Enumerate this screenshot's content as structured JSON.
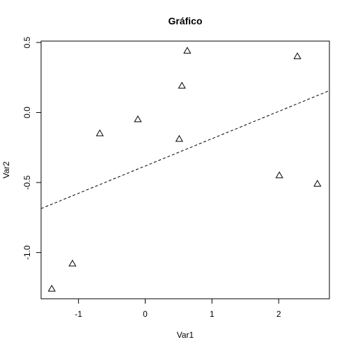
{
  "chart_data": {
    "type": "scatter",
    "title": "Gráfico",
    "xlabel": "Var1",
    "ylabel": "Var2",
    "xlim": [
      -1.56,
      2.76
    ],
    "ylim": [
      -1.33,
      0.51
    ],
    "x_ticks": [
      -1,
      0,
      1,
      2
    ],
    "x_tick_labels": [
      "-1",
      "0",
      "1",
      "2"
    ],
    "y_ticks": [
      -1.0,
      -0.5,
      0.0,
      0.5
    ],
    "y_tick_labels": [
      "-1.0",
      "-0.5",
      "0.0",
      "0.5"
    ],
    "grid": false,
    "marker": "triangle-open",
    "points": [
      {
        "x": -1.4,
        "y": -1.26
      },
      {
        "x": -1.09,
        "y": -1.08
      },
      {
        "x": -0.68,
        "y": -0.15
      },
      {
        "x": -0.11,
        "y": -0.05
      },
      {
        "x": 0.51,
        "y": -0.19
      },
      {
        "x": 0.55,
        "y": 0.19
      },
      {
        "x": 0.63,
        "y": 0.44
      },
      {
        "x": 2.01,
        "y": -0.45
      },
      {
        "x": 2.28,
        "y": 0.4
      },
      {
        "x": 2.58,
        "y": -0.51
      }
    ],
    "trend_line": {
      "style": "dashed",
      "intercept": -0.382,
      "slope": 0.195
    }
  }
}
